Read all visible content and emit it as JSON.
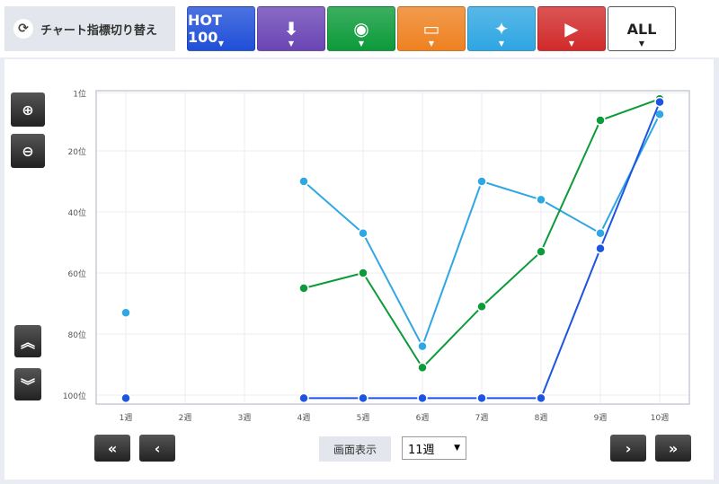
{
  "header": {
    "switch_label": "チャート指標切り替え",
    "tabs": [
      {
        "label": "HOT 100",
        "icon": "",
        "color": "#1f4fd8"
      },
      {
        "label": "",
        "icon": "sales-icon",
        "color": "#6a45b5"
      },
      {
        "label": "",
        "icon": "radio-icon",
        "color": "#0c9a3a"
      },
      {
        "label": "",
        "icon": "pc-cd-icon",
        "color": "#ee8120"
      },
      {
        "label": "",
        "icon": "twitter-icon",
        "color": "#2ea6e2"
      },
      {
        "label": "",
        "icon": "youtube-icon",
        "color": "#d12a2a"
      },
      {
        "label": "ALL",
        "icon": "",
        "color": "#ffffff"
      }
    ]
  },
  "controls": {
    "display_label": "画面表示",
    "weeks_value": "11週"
  },
  "chart_data": {
    "type": "line",
    "categories": [
      "1週",
      "2週",
      "3週",
      "4週",
      "5週",
      "6週",
      "7週",
      "8週",
      "9週",
      "10週"
    ],
    "y_ticks": [
      "1位",
      "20位",
      "40位",
      "60位",
      "80位",
      "100位"
    ],
    "ylim": [
      1,
      100
    ],
    "y_reversed": true,
    "grid": true,
    "series": [
      {
        "color": "#2fa7e3",
        "values": [
          73,
          null,
          null,
          30,
          47,
          84,
          30,
          36,
          47,
          8
        ]
      },
      {
        "color": "#0c9a3a",
        "values": [
          null,
          null,
          null,
          65,
          60,
          91,
          71,
          53,
          10,
          3
        ]
      },
      {
        "color": "#1e55e0",
        "values": [
          101,
          null,
          null,
          101,
          101,
          101,
          101,
          101,
          52,
          4
        ]
      }
    ]
  }
}
